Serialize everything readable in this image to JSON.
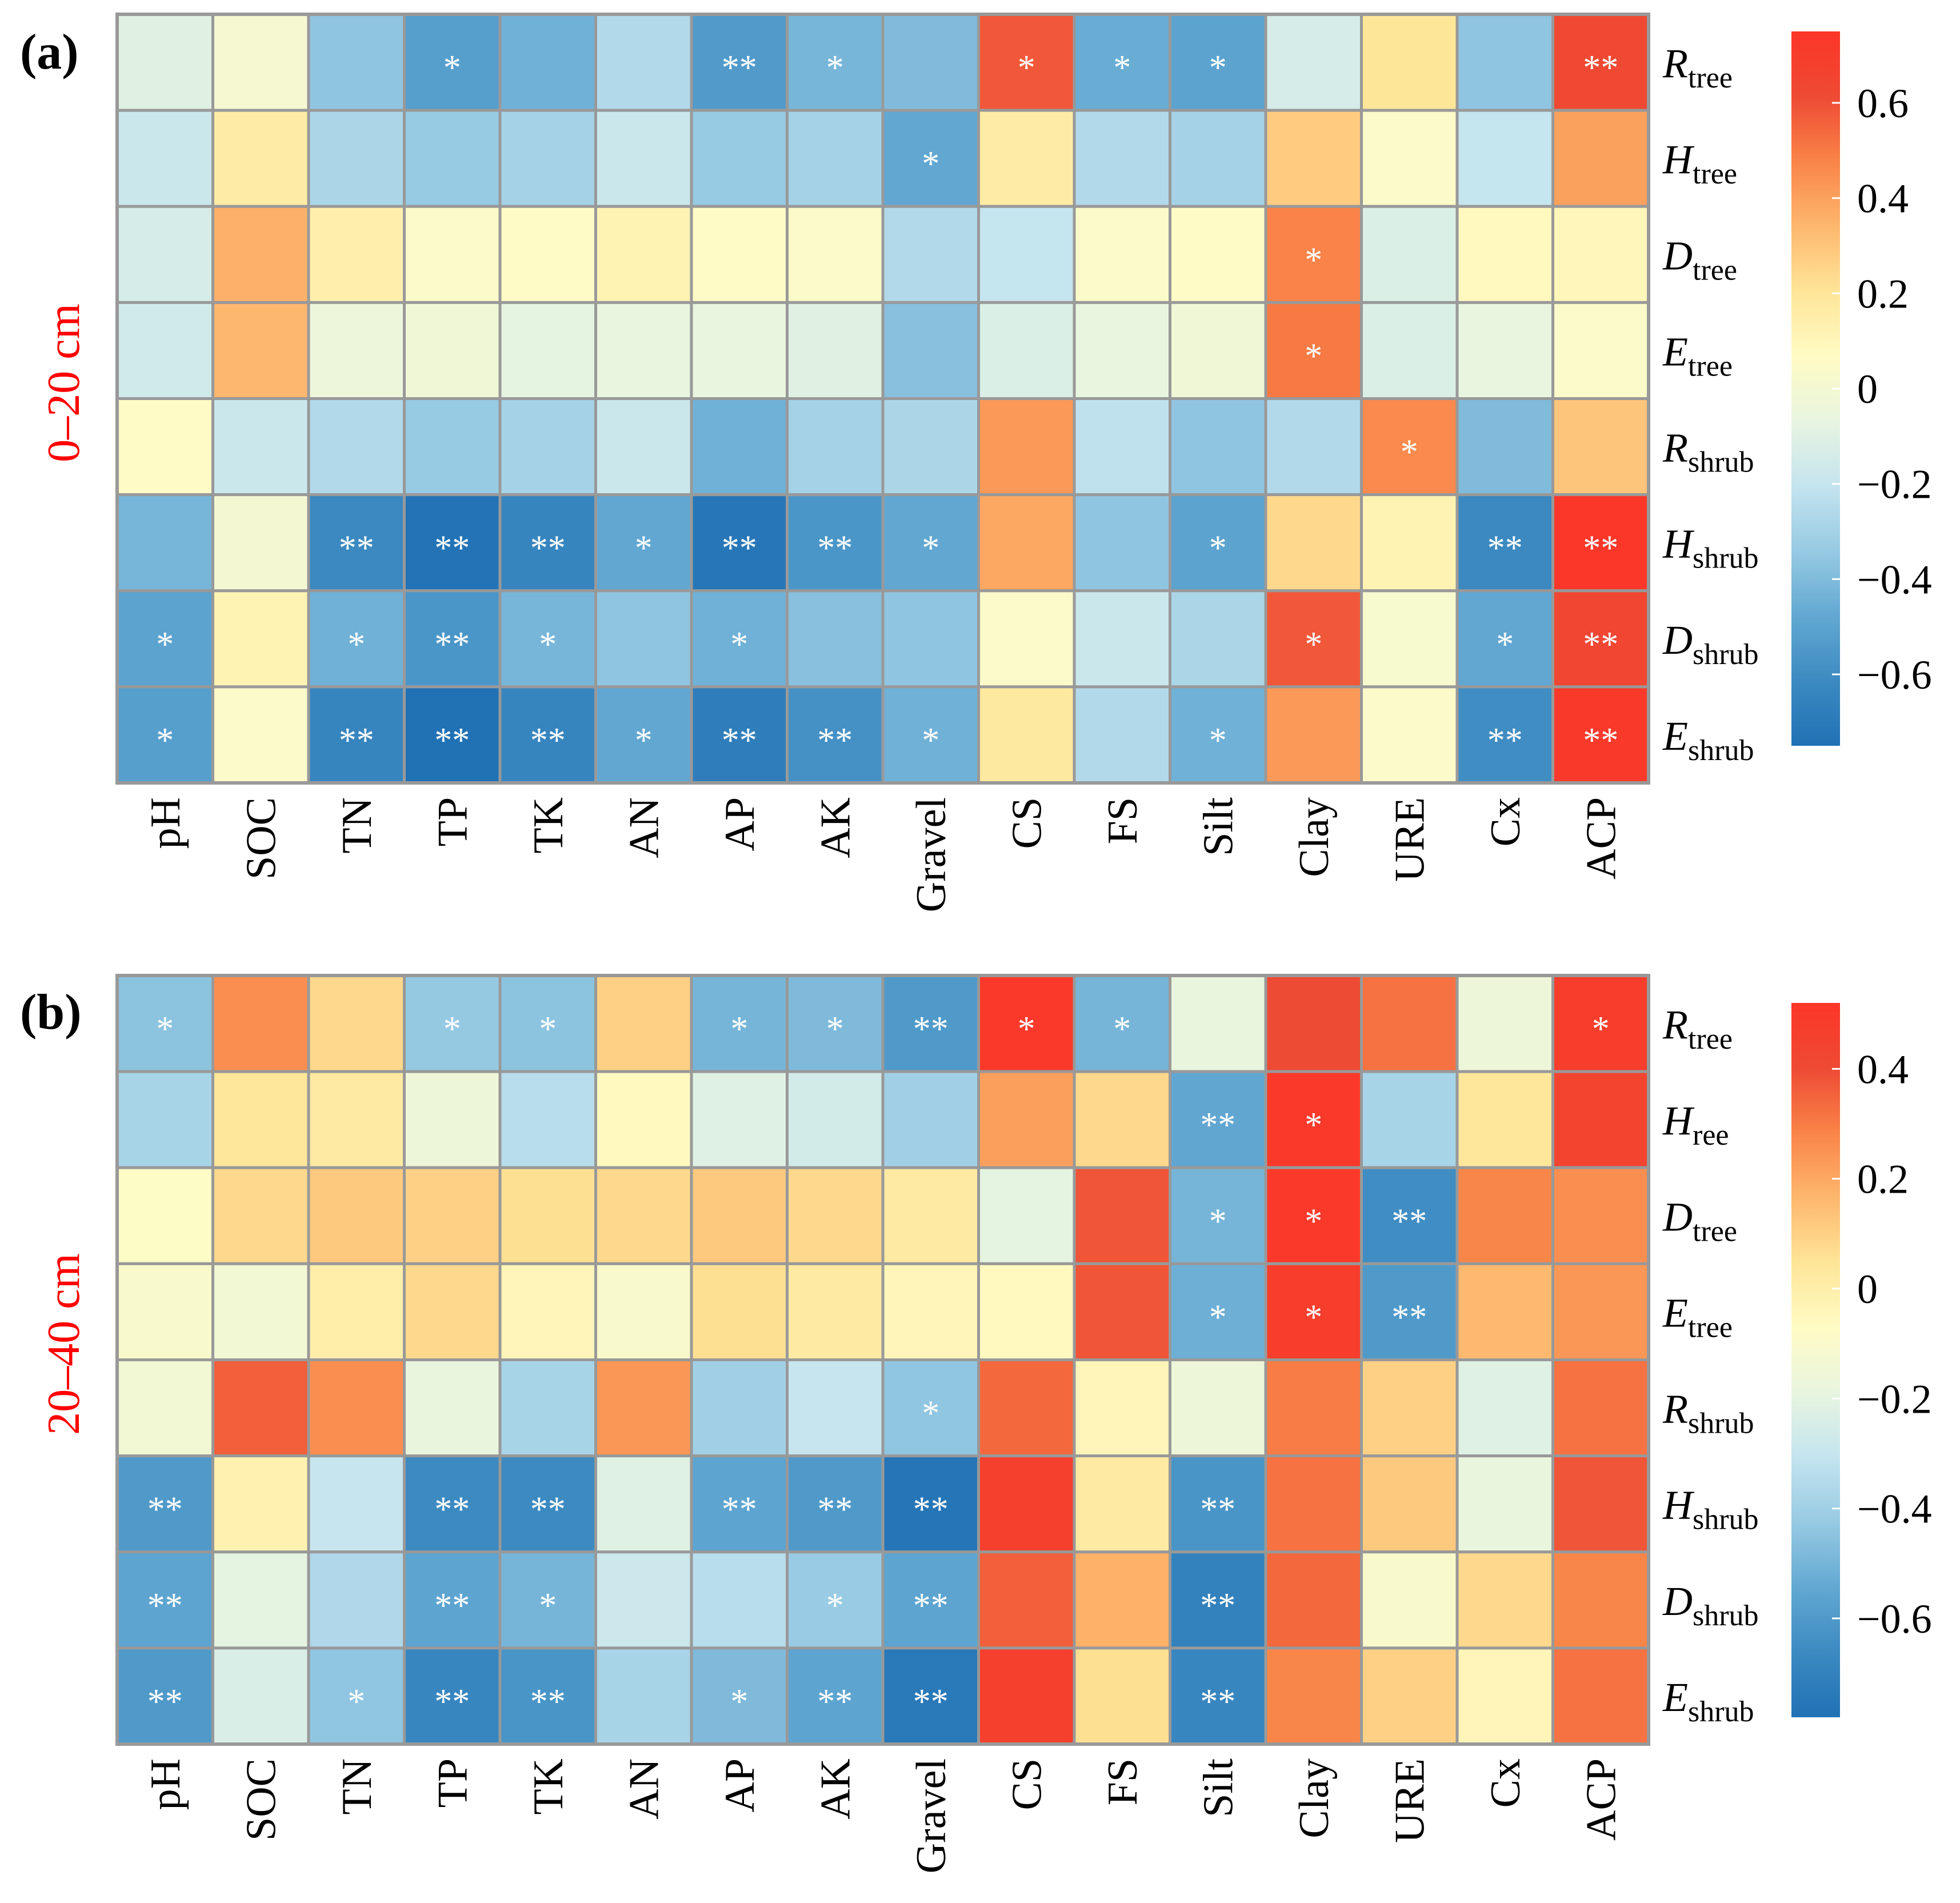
{
  "colors": {
    "grid": "#999999",
    "significance_text": "#ffffff",
    "depth_label": "#ff0000",
    "scale": [
      "#2171b5",
      "#3c8ac1",
      "#62a8d2",
      "#97cae3",
      "#c4e4ef",
      "#e8f5e0",
      "#fffbc4",
      "#fee598",
      "#fdb76e",
      "#f98448",
      "#ee4a34",
      "#fc3628"
    ]
  },
  "chart_data": [
    {
      "type": "heatmap",
      "panel_label": "(a)",
      "depth_label": "0–20 cm",
      "columns": [
        "pH",
        "SOC",
        "TN",
        "TP",
        "TK",
        "AN",
        "AP",
        "AK",
        "Gravel",
        "CS",
        "FS",
        "Silt",
        "Clay",
        "URE",
        "Cx",
        "ACP"
      ],
      "rows": [
        {
          "main": "R",
          "sub": "tree"
        },
        {
          "main": "H",
          "sub": "tree"
        },
        {
          "main": "D",
          "sub": "tree"
        },
        {
          "main": "E",
          "sub": "tree"
        },
        {
          "main": "R",
          "sub": "shrub"
        },
        {
          "main": "H",
          "sub": "shrub"
        },
        {
          "main": "D",
          "sub": "shrub"
        },
        {
          "main": "E",
          "sub": "shrub"
        }
      ],
      "values": [
        [
          -0.1,
          0.01,
          -0.36,
          -0.52,
          -0.44,
          -0.26,
          -0.54,
          -0.42,
          -0.4,
          0.58,
          -0.46,
          -0.5,
          -0.14,
          0.2,
          -0.36,
          0.62
        ],
        [
          -0.18,
          0.16,
          -0.28,
          -0.34,
          -0.3,
          -0.18,
          -0.34,
          -0.3,
          -0.48,
          0.16,
          -0.26,
          -0.3,
          0.28,
          0.04,
          -0.2,
          0.4
        ],
        [
          -0.14,
          0.36,
          0.14,
          0.04,
          0.06,
          0.12,
          0.06,
          0.04,
          -0.26,
          -0.2,
          0.04,
          0.06,
          0.48,
          -0.12,
          0.08,
          0.1
        ],
        [
          -0.16,
          0.34,
          -0.04,
          -0.02,
          -0.08,
          -0.06,
          -0.06,
          -0.1,
          -0.38,
          -0.12,
          -0.06,
          -0.02,
          0.5,
          -0.12,
          -0.06,
          0.04
        ],
        [
          0.06,
          -0.18,
          -0.26,
          -0.34,
          -0.3,
          -0.18,
          -0.44,
          -0.3,
          -0.28,
          0.42,
          -0.22,
          -0.36,
          -0.26,
          0.46,
          -0.4,
          0.3
        ],
        [
          -0.42,
          0.0,
          -0.62,
          -0.74,
          -0.64,
          -0.48,
          -0.72,
          -0.56,
          -0.48,
          0.38,
          -0.36,
          -0.5,
          0.24,
          0.12,
          -0.62,
          0.74
        ],
        [
          -0.5,
          0.12,
          -0.44,
          -0.56,
          -0.42,
          -0.36,
          -0.44,
          -0.38,
          -0.36,
          0.04,
          -0.18,
          -0.28,
          0.58,
          0.02,
          -0.48,
          0.64
        ],
        [
          -0.52,
          0.04,
          -0.64,
          -0.76,
          -0.64,
          -0.48,
          -0.68,
          -0.58,
          -0.44,
          0.18,
          -0.26,
          -0.44,
          0.42,
          0.04,
          -0.6,
          0.72
        ]
      ],
      "significance": [
        [
          "",
          "",
          "",
          "*",
          "",
          "",
          "**",
          "*",
          "",
          "*",
          "*",
          "*",
          "",
          "",
          "",
          "**"
        ],
        [
          "",
          "",
          "",
          "",
          "",
          "",
          "",
          "",
          "*",
          "",
          "",
          "",
          "",
          "",
          "",
          ""
        ],
        [
          "",
          "",
          "",
          "",
          "",
          "",
          "",
          "",
          "",
          "",
          "",
          "",
          "*",
          "",
          "",
          ""
        ],
        [
          "",
          "",
          "",
          "",
          "",
          "",
          "",
          "",
          "",
          "",
          "",
          "",
          "*",
          "",
          "",
          ""
        ],
        [
          "",
          "",
          "",
          "",
          "",
          "",
          "",
          "",
          "",
          "",
          "",
          "",
          "",
          "*",
          "",
          ""
        ],
        [
          "",
          "",
          "**",
          "**",
          "**",
          "*",
          "**",
          "**",
          "*",
          "",
          "",
          "*",
          "",
          "",
          "**",
          "**"
        ],
        [
          "*",
          "",
          "*",
          "**",
          "*",
          "",
          "*",
          "",
          "",
          "",
          "",
          "",
          "*",
          "",
          "*",
          "**"
        ],
        [
          "*",
          "",
          "**",
          "**",
          "**",
          "*",
          "**",
          "**",
          "*",
          "",
          "",
          "*",
          "",
          "",
          "**",
          "**"
        ]
      ],
      "colorbar": {
        "range": [
          -0.75,
          0.75
        ],
        "ticks": [
          0.6,
          0.4,
          0.2,
          0,
          -0.2,
          -0.4,
          -0.6
        ],
        "tick_labels": [
          "0.6",
          "0.4",
          "0.2",
          "0",
          "−0.2",
          "−0.4",
          "−0.6"
        ]
      }
    },
    {
      "type": "heatmap",
      "panel_label": "(b)",
      "depth_label": "20–40 cm",
      "columns": [
        "pH",
        "SOC",
        "TN",
        "TP",
        "TK",
        "AN",
        "AP",
        "AK",
        "Gravel",
        "CS",
        "FS",
        "Silt",
        "Clay",
        "URE",
        "Cx",
        "ACP"
      ],
      "rows": [
        {
          "main": "R",
          "sub": "tree"
        },
        {
          "main": "H",
          "sub": "ree"
        },
        {
          "main": "D",
          "sub": "tree"
        },
        {
          "main": "E",
          "sub": "tree"
        },
        {
          "main": "R",
          "sub": "shrub"
        },
        {
          "main": "H",
          "sub": "shrub"
        },
        {
          "main": "D",
          "sub": "shrub"
        },
        {
          "main": "E",
          "sub": "shrub"
        }
      ],
      "values": [
        [
          -0.45,
          0.26,
          0.08,
          -0.43,
          -0.45,
          0.1,
          -0.5,
          -0.48,
          -0.6,
          0.5,
          -0.5,
          -0.18,
          0.4,
          0.32,
          -0.16,
          0.48
        ],
        [
          -0.38,
          0.04,
          0.02,
          -0.16,
          -0.34,
          -0.06,
          -0.22,
          -0.26,
          -0.4,
          0.22,
          0.08,
          -0.55,
          0.5,
          -0.38,
          0.04,
          0.44
        ],
        [
          -0.08,
          0.08,
          0.12,
          0.1,
          0.06,
          0.08,
          0.12,
          0.08,
          0.02,
          -0.2,
          0.38,
          -0.5,
          0.5,
          -0.65,
          0.28,
          0.26
        ],
        [
          -0.1,
          -0.14,
          0.0,
          0.08,
          -0.04,
          -0.1,
          0.06,
          0.02,
          -0.04,
          -0.06,
          0.38,
          -0.52,
          0.48,
          -0.6,
          0.16,
          0.24
        ],
        [
          -0.14,
          0.36,
          0.26,
          -0.18,
          -0.38,
          0.24,
          -0.4,
          -0.3,
          -0.44,
          0.34,
          -0.04,
          -0.16,
          0.3,
          0.1,
          -0.22,
          0.32
        ],
        [
          -0.6,
          -0.02,
          -0.3,
          -0.66,
          -0.66,
          -0.22,
          -0.56,
          -0.6,
          -0.76,
          0.46,
          0.02,
          -0.62,
          0.32,
          0.12,
          -0.18,
          0.38
        ],
        [
          -0.56,
          -0.2,
          -0.36,
          -0.56,
          -0.5,
          -0.28,
          -0.34,
          -0.42,
          -0.56,
          0.36,
          0.18,
          -0.7,
          0.34,
          -0.1,
          0.08,
          0.28
        ],
        [
          -0.6,
          -0.24,
          -0.44,
          -0.68,
          -0.62,
          -0.38,
          -0.48,
          -0.56,
          -0.74,
          0.46,
          0.06,
          -0.68,
          0.28,
          0.1,
          -0.04,
          0.32
        ]
      ],
      "significance": [
        [
          "*",
          "",
          "",
          "*",
          "*",
          "",
          "*",
          "*",
          "**",
          "*",
          "*",
          "",
          "",
          "",
          "",
          "*"
        ],
        [
          "",
          "",
          "",
          "",
          "",
          "",
          "",
          "",
          "",
          "",
          "",
          "**",
          "*",
          "",
          "",
          ""
        ],
        [
          "",
          "",
          "",
          "",
          "",
          "",
          "",
          "",
          "",
          "",
          "",
          "*",
          "*",
          "**",
          "",
          ""
        ],
        [
          "",
          "",
          "",
          "",
          "",
          "",
          "",
          "",
          "",
          "",
          "",
          "*",
          "*",
          "**",
          "",
          ""
        ],
        [
          "",
          "",
          "",
          "",
          "",
          "",
          "",
          "",
          "*",
          "",
          "",
          "",
          "",
          "",
          "",
          ""
        ],
        [
          "**",
          "",
          "",
          "**",
          "**",
          "",
          "**",
          "**",
          "**",
          "",
          "",
          "**",
          "",
          "",
          "",
          ""
        ],
        [
          "**",
          "",
          "",
          "**",
          "*",
          "",
          "",
          "*",
          "**",
          "",
          "",
          "**",
          "",
          "",
          "",
          ""
        ],
        [
          "**",
          "",
          "*",
          "**",
          "**",
          "",
          "*",
          "**",
          "**",
          "",
          "",
          "**",
          "",
          "",
          "",
          ""
        ]
      ],
      "colorbar": {
        "range": [
          -0.78,
          0.52
        ],
        "ticks": [
          0.4,
          0.2,
          0,
          -0.2,
          -0.4,
          -0.6
        ],
        "tick_labels": [
          "0.4",
          "0.2",
          "0",
          "−0.2",
          "−0.4",
          "−0.6"
        ]
      }
    }
  ]
}
